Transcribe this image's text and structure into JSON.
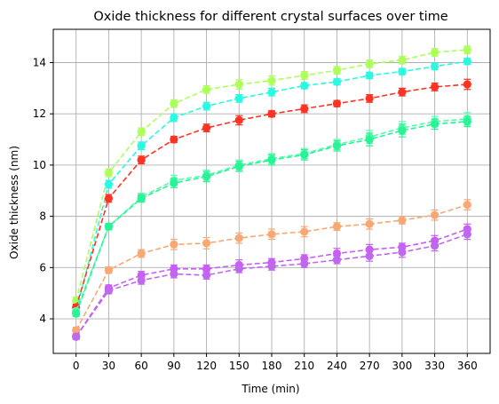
{
  "chart_data": {
    "type": "line",
    "title": "Oxide thickness for different crystal surfaces over time",
    "xlabel": "Time (min)",
    "ylabel": "Oxide thickness (nm)",
    "x": [
      0,
      30,
      60,
      90,
      120,
      150,
      180,
      210,
      240,
      270,
      300,
      330,
      360
    ],
    "xticks": [
      "0",
      "30",
      "60",
      "90",
      "120",
      "150",
      "180",
      "210",
      "240",
      "270",
      "300",
      "330",
      "360"
    ],
    "yticks": [
      "4",
      "6",
      "8",
      "10",
      "12",
      "14"
    ],
    "xlim": [
      -21,
      381
    ],
    "ylim": [
      2.65,
      15.3
    ],
    "grid": true,
    "line_style": "dashed",
    "marker": "circle",
    "error_bars": true,
    "series": [
      {
        "color": "#adff5a",
        "values": [
          4.7,
          9.7,
          11.3,
          12.4,
          12.95,
          13.15,
          13.3,
          13.5,
          13.7,
          13.95,
          14.1,
          14.4,
          14.5
        ],
        "errors": [
          0.15,
          0.15,
          0.15,
          0.15,
          0.15,
          0.18,
          0.18,
          0.15,
          0.15,
          0.15,
          0.15,
          0.15,
          0.15
        ]
      },
      {
        "color": "#28fbe2",
        "values": [
          4.3,
          9.25,
          10.75,
          11.85,
          12.3,
          12.6,
          12.85,
          13.1,
          13.25,
          13.5,
          13.65,
          13.85,
          14.05
        ],
        "errors": [
          0.12,
          0.15,
          0.15,
          0.15,
          0.15,
          0.15,
          0.15,
          0.12,
          0.12,
          0.12,
          0.12,
          0.12,
          0.12
        ]
      },
      {
        "color": "#ff3323",
        "values": [
          4.45,
          8.7,
          10.2,
          11.0,
          11.45,
          11.75,
          12.0,
          12.2,
          12.4,
          12.6,
          12.85,
          13.05,
          13.15
        ],
        "errors": [
          0.12,
          0.15,
          0.15,
          0.12,
          0.15,
          0.18,
          0.12,
          0.15,
          0.12,
          0.15,
          0.15,
          0.15,
          0.2
        ]
      },
      {
        "color": "#55ffa8",
        "values": [
          4.3,
          7.6,
          8.75,
          9.4,
          9.6,
          10.0,
          10.25,
          10.45,
          10.8,
          11.1,
          11.45,
          11.7,
          11.8
        ],
        "errors": [
          0.1,
          0.12,
          0.15,
          0.2,
          0.2,
          0.2,
          0.2,
          0.2,
          0.2,
          0.25,
          0.25,
          0.2,
          0.25
        ]
      },
      {
        "color": "#28f397",
        "values": [
          4.2,
          7.6,
          8.7,
          9.3,
          9.55,
          9.95,
          10.2,
          10.4,
          10.75,
          11.0,
          11.35,
          11.6,
          11.7
        ],
        "errors": [
          0.1,
          0.12,
          0.15,
          0.18,
          0.2,
          0.2,
          0.2,
          0.2,
          0.2,
          0.25,
          0.25,
          0.2,
          0.2
        ]
      },
      {
        "color": "#f8a874",
        "values": [
          3.55,
          5.9,
          6.55,
          6.9,
          6.95,
          7.15,
          7.3,
          7.4,
          7.6,
          7.7,
          7.85,
          8.05,
          8.45
        ],
        "errors": [
          0.12,
          0.12,
          0.15,
          0.2,
          0.22,
          0.2,
          0.2,
          0.2,
          0.15,
          0.2,
          0.15,
          0.2,
          0.2
        ]
      },
      {
        "color": "#ca5cf7",
        "values": [
          3.3,
          5.2,
          5.7,
          5.95,
          5.95,
          6.1,
          6.2,
          6.35,
          6.55,
          6.7,
          6.8,
          7.05,
          7.5
        ],
        "errors": [
          0.1,
          0.12,
          0.15,
          0.15,
          0.15,
          0.2,
          0.15,
          0.15,
          0.2,
          0.2,
          0.15,
          0.2,
          0.2
        ]
      },
      {
        "color": "#c067ef",
        "values": [
          3.3,
          5.1,
          5.5,
          5.75,
          5.7,
          5.95,
          6.05,
          6.15,
          6.3,
          6.45,
          6.6,
          6.85,
          7.3
        ],
        "errors": [
          0.1,
          0.12,
          0.15,
          0.15,
          0.15,
          0.15,
          0.15,
          0.15,
          0.15,
          0.2,
          0.2,
          0.2,
          0.2
        ]
      }
    ]
  }
}
